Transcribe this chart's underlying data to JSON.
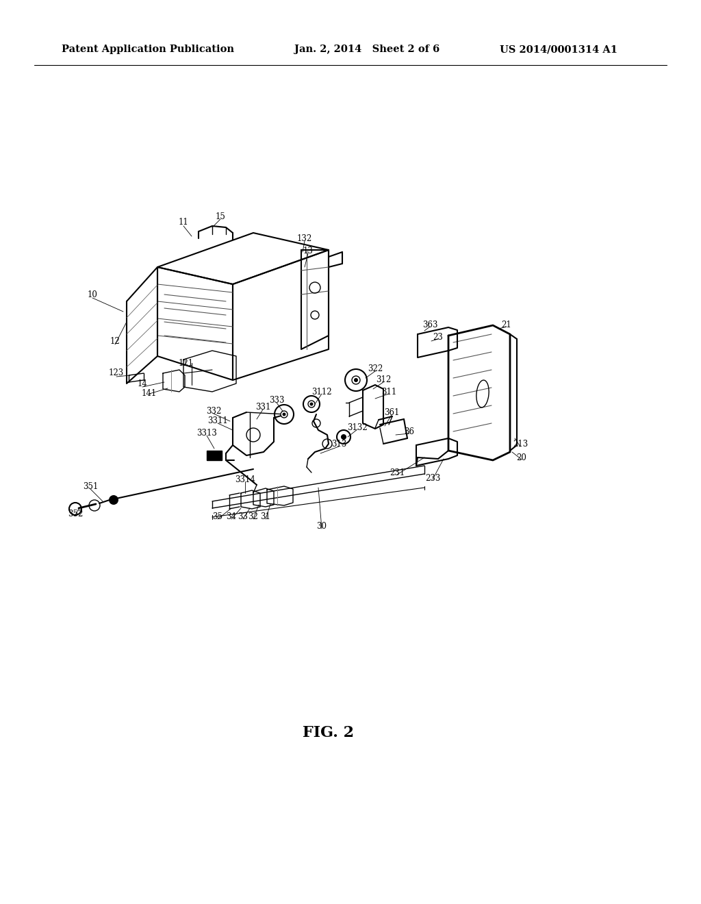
{
  "bg_color": "#ffffff",
  "header_left": "Patent Application Publication",
  "header_mid": "Jan. 2, 2014   Sheet 2 of 6",
  "header_right": "US 2014/0001314 A1",
  "fig_label": "FIG. 2",
  "header_fontsize": 10.5,
  "label_fontsize": 8.5,
  "fig_label_fontsize": 16
}
